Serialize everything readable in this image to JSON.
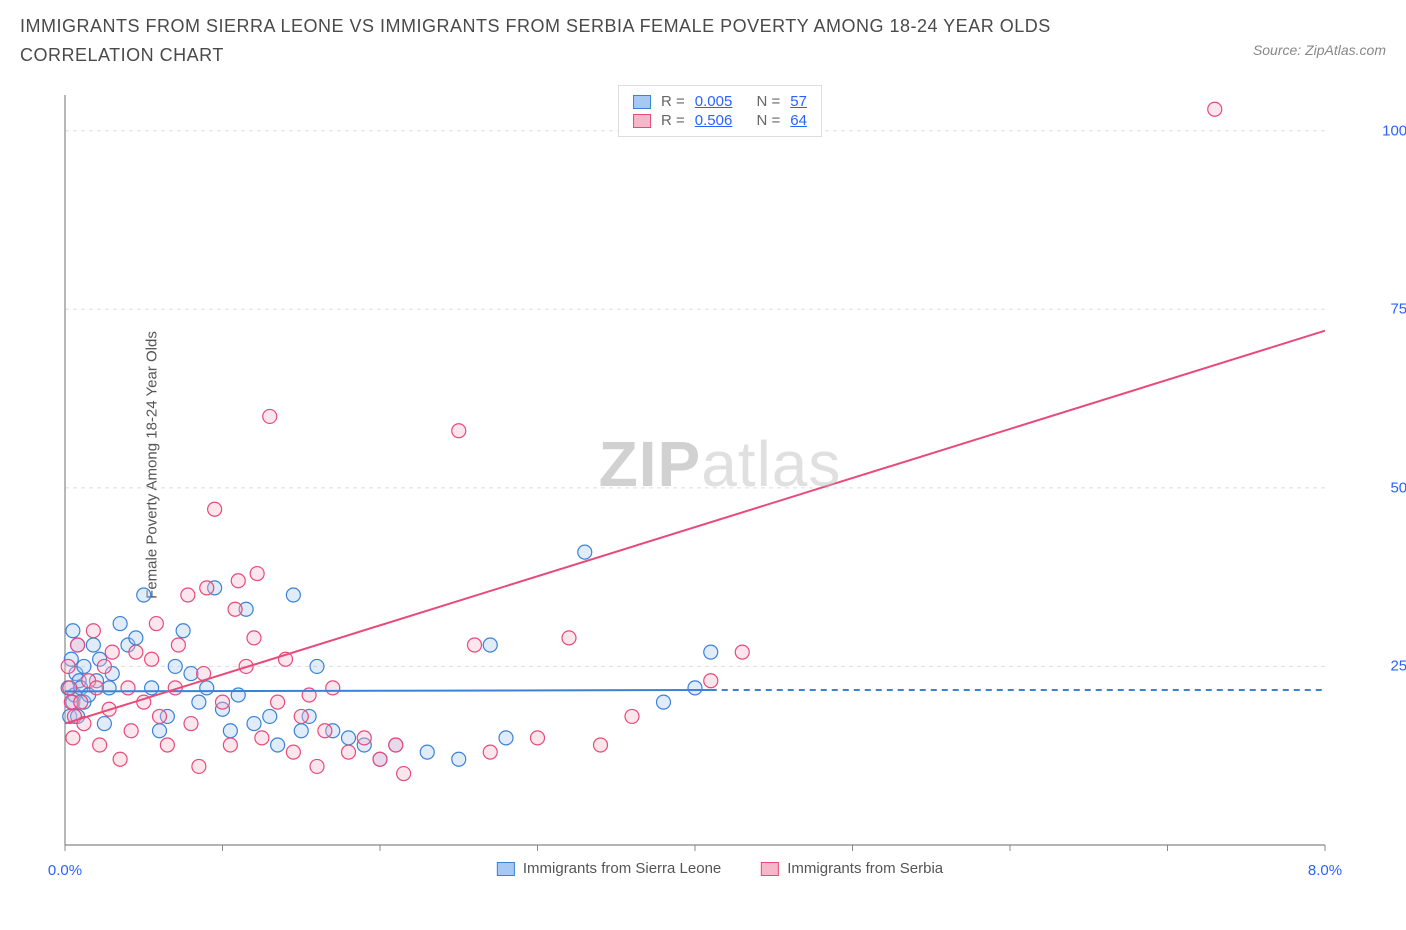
{
  "title": "IMMIGRANTS FROM SIERRA LEONE VS IMMIGRANTS FROM SERBIA FEMALE POVERTY AMONG 18-24 YEAR OLDS CORRELATION CHART",
  "source": "Source: ZipAtlas.com",
  "y_axis_label": "Female Poverty Among 18-24 Year Olds",
  "watermark_bold": "ZIP",
  "watermark_light": "atlas",
  "chart": {
    "type": "scatter",
    "background_color": "#ffffff",
    "grid_color": "#dddddd",
    "axis_color": "#888888",
    "xlim": [
      0.0,
      8.0
    ],
    "ylim": [
      0.0,
      105.0
    ],
    "x_ticks": [
      0.0,
      1.0,
      2.0,
      3.0,
      4.0,
      5.0,
      6.0,
      7.0,
      8.0
    ],
    "x_tick_labels": {
      "0": "0.0%",
      "8": "8.0%"
    },
    "y_ticks": [
      25.0,
      50.0,
      75.0,
      100.0
    ],
    "y_tick_labels": [
      "25.0%",
      "50.0%",
      "75.0%",
      "100.0%"
    ],
    "marker_radius": 7,
    "marker_stroke_width": 1.2,
    "marker_fill_opacity": 0.35,
    "series": [
      {
        "id": "sierra_leone",
        "label": "Immigrants from Sierra Leone",
        "color_fill": "#a7c8f2",
        "color_stroke": "#3b82d6",
        "R": "0.005",
        "N": "57",
        "trend": {
          "x1": 0.0,
          "y1": 21.5,
          "x2": 4.1,
          "y2": 21.7,
          "dash_x2": 8.0,
          "dash_y2": 21.7,
          "stroke_width": 2.0
        },
        "points": [
          [
            0.02,
            22
          ],
          [
            0.03,
            18
          ],
          [
            0.04,
            26
          ],
          [
            0.05,
            30
          ],
          [
            0.05,
            20
          ],
          [
            0.06,
            21
          ],
          [
            0.07,
            24
          ],
          [
            0.08,
            28
          ],
          [
            0.08,
            18
          ],
          [
            0.09,
            23
          ],
          [
            0.1,
            22
          ],
          [
            0.12,
            25
          ],
          [
            0.12,
            20
          ],
          [
            0.15,
            21
          ],
          [
            0.18,
            28
          ],
          [
            0.2,
            23
          ],
          [
            0.22,
            26
          ],
          [
            0.25,
            17
          ],
          [
            0.28,
            22
          ],
          [
            0.3,
            24
          ],
          [
            0.35,
            31
          ],
          [
            0.4,
            28
          ],
          [
            0.45,
            29
          ],
          [
            0.5,
            35
          ],
          [
            0.55,
            22
          ],
          [
            0.6,
            16
          ],
          [
            0.65,
            18
          ],
          [
            0.7,
            25
          ],
          [
            0.75,
            30
          ],
          [
            0.8,
            24
          ],
          [
            0.85,
            20
          ],
          [
            0.9,
            22
          ],
          [
            0.95,
            36
          ],
          [
            1.0,
            19
          ],
          [
            1.05,
            16
          ],
          [
            1.1,
            21
          ],
          [
            1.15,
            33
          ],
          [
            1.2,
            17
          ],
          [
            1.3,
            18
          ],
          [
            1.35,
            14
          ],
          [
            1.45,
            35
          ],
          [
            1.5,
            16
          ],
          [
            1.55,
            18
          ],
          [
            1.6,
            25
          ],
          [
            1.7,
            16
          ],
          [
            1.8,
            15
          ],
          [
            1.9,
            14
          ],
          [
            2.0,
            12
          ],
          [
            2.1,
            14
          ],
          [
            2.3,
            13
          ],
          [
            2.5,
            12
          ],
          [
            2.7,
            28
          ],
          [
            2.8,
            15
          ],
          [
            3.3,
            41
          ],
          [
            3.8,
            20
          ],
          [
            4.0,
            22
          ],
          [
            4.1,
            27
          ]
        ]
      },
      {
        "id": "serbia",
        "label": "Immigrants from Serbia",
        "color_fill": "#f5b8ca",
        "color_stroke": "#e84a7a",
        "R": "0.506",
        "N": "64",
        "trend": {
          "x1": 0.0,
          "y1": 17.0,
          "x2": 8.0,
          "y2": 72.0,
          "stroke_width": 2.0
        },
        "points": [
          [
            0.02,
            25
          ],
          [
            0.03,
            22
          ],
          [
            0.04,
            20
          ],
          [
            0.05,
            15
          ],
          [
            0.06,
            18
          ],
          [
            0.08,
            28
          ],
          [
            0.1,
            20
          ],
          [
            0.12,
            17
          ],
          [
            0.15,
            23
          ],
          [
            0.18,
            30
          ],
          [
            0.2,
            22
          ],
          [
            0.22,
            14
          ],
          [
            0.25,
            25
          ],
          [
            0.28,
            19
          ],
          [
            0.3,
            27
          ],
          [
            0.35,
            12
          ],
          [
            0.4,
            22
          ],
          [
            0.42,
            16
          ],
          [
            0.45,
            27
          ],
          [
            0.5,
            20
          ],
          [
            0.55,
            26
          ],
          [
            0.58,
            31
          ],
          [
            0.6,
            18
          ],
          [
            0.65,
            14
          ],
          [
            0.7,
            22
          ],
          [
            0.72,
            28
          ],
          [
            0.78,
            35
          ],
          [
            0.8,
            17
          ],
          [
            0.85,
            11
          ],
          [
            0.88,
            24
          ],
          [
            0.9,
            36
          ],
          [
            0.95,
            47
          ],
          [
            1.0,
            20
          ],
          [
            1.05,
            14
          ],
          [
            1.08,
            33
          ],
          [
            1.1,
            37
          ],
          [
            1.15,
            25
          ],
          [
            1.2,
            29
          ],
          [
            1.22,
            38
          ],
          [
            1.25,
            15
          ],
          [
            1.3,
            60
          ],
          [
            1.35,
            20
          ],
          [
            1.4,
            26
          ],
          [
            1.45,
            13
          ],
          [
            1.5,
            18
          ],
          [
            1.55,
            21
          ],
          [
            1.6,
            11
          ],
          [
            1.65,
            16
          ],
          [
            1.7,
            22
          ],
          [
            1.8,
            13
          ],
          [
            1.9,
            15
          ],
          [
            2.0,
            12
          ],
          [
            2.1,
            14
          ],
          [
            2.15,
            10
          ],
          [
            2.5,
            58
          ],
          [
            2.6,
            28
          ],
          [
            2.7,
            13
          ],
          [
            3.0,
            15
          ],
          [
            3.2,
            29
          ],
          [
            3.4,
            14
          ],
          [
            3.6,
            18
          ],
          [
            4.1,
            23
          ],
          [
            4.3,
            27
          ],
          [
            7.3,
            103
          ]
        ]
      }
    ]
  }
}
